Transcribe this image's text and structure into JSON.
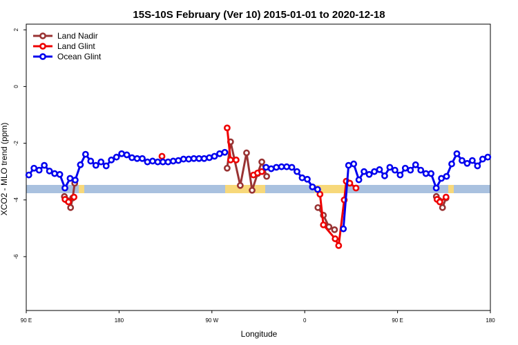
{
  "chart_data": {
    "type": "line",
    "title": "15S-10S February (Ver 10)   2015-01-01 to 2020-12-18",
    "x_label": "Longitude",
    "y_label": "XCO2 - MLO trend (ppm)",
    "xlim": [
      90,
      540
    ],
    "xticks": [
      {
        "value": 90,
        "label": "90 E"
      },
      180,
      {
        "value": 270,
        "label": "90 W"
      },
      {
        "value": 360,
        "label": "0"
      },
      {
        "value": 450,
        "label": "90 E"
      },
      {
        "value": 540,
        "label": "180"
      }
    ],
    "ylim": [
      -7.9,
      2.2
    ],
    "yticks": [
      2,
      0,
      -2,
      -4,
      -6
    ],
    "legend": "top-left",
    "series": [
      {
        "name": "Land Nadir",
        "color": "#993333",
        "x": [
          127.0,
          129.6,
          133.0,
          135.0,
          137.0,
          null,
          284.8,
          288.1,
          297.5,
          303.6,
          309.0,
          314.3,
          318.4,
          323.1,
          null,
          372.8,
          378.1,
          383.5,
          388.9,
          null,
          487.6,
          490.3,
          493.6,
          497.0
        ],
        "values": [
          -3.88,
          -4.02,
          -4.27,
          -3.93,
          -3.41,
          null,
          -2.88,
          -1.95,
          -3.49,
          -2.34,
          -3.66,
          -3.07,
          -2.66,
          -3.17,
          null,
          -4.27,
          -4.54,
          -4.95,
          -5.05,
          null,
          -3.88,
          -4.02,
          -4.27,
          -3.93
        ]
      },
      {
        "name": "Land Glint",
        "color": "#ee0000",
        "x": [
          127.6,
          131.0,
          136.3,
          null,
          221.6,
          null,
          284.8,
          288.1,
          293.5,
          null,
          310.3,
          314.3,
          318.4,
          null,
          374.8,
          378.1,
          389.5,
          392.9,
          398.3,
          400.3,
          403.7,
          409.7,
          null,
          488.3,
          491.0,
          497.0
        ],
        "values": [
          -3.98,
          -4.07,
          -3.9,
          null,
          -2.46,
          null,
          -1.46,
          -2.59,
          -2.59,
          null,
          -3.12,
          -3.05,
          -3.0,
          null,
          -3.8,
          -4.88,
          -5.37,
          -5.61,
          -4.0,
          -3.34,
          -3.41,
          -3.58,
          null,
          -3.98,
          -4.07,
          -3.9
        ]
      },
      {
        "name": "Ocean Glint",
        "color": "#0000ee",
        "x": [
          92.5,
          97.5,
          102.5,
          107.5,
          112.5,
          117.5,
          122.5,
          127.5,
          132.5,
          137.5,
          142.5,
          147.5,
          152.5,
          157.5,
          162.5,
          167.5,
          172.5,
          177.5,
          182.5,
          187.5,
          192.5,
          197.5,
          202.5,
          207.5,
          212.5,
          217.5,
          222.5,
          227.5,
          232.5,
          237.5,
          242.5,
          247.5,
          252.5,
          257.5,
          262.5,
          267.5,
          272.5,
          277.5,
          282.5,
          287.5,
          292.5,
          297.5,
          302.5,
          307.5,
          312.5,
          317.5,
          322.5,
          327.5,
          332.5,
          337.5,
          342.5,
          347.5,
          352.5,
          357.5,
          362.5,
          367.5,
          372.5,
          377.5,
          382.5,
          387.5,
          392.5,
          397.5,
          402.5,
          407.5,
          412.5,
          417.5,
          422.5,
          427.5,
          432.5,
          437.5,
          442.5,
          447.5,
          452.5,
          457.5,
          462.5,
          467.5,
          472.5,
          477.5,
          482.5,
          487.5,
          492.5,
          497.5,
          502.5,
          507.5,
          512.5,
          517.5,
          522.5,
          527.5,
          532.5,
          537.5
        ],
        "values": [
          -3.12,
          -2.88,
          -2.95,
          -2.78,
          -2.98,
          -3.07,
          -3.1,
          -3.58,
          -3.24,
          -3.3,
          -2.76,
          -2.39,
          -2.63,
          -2.78,
          -2.66,
          -2.8,
          -2.59,
          -2.49,
          -2.37,
          -2.41,
          -2.51,
          -2.54,
          -2.54,
          -2.66,
          -2.63,
          -2.66,
          -2.66,
          -2.66,
          -2.63,
          -2.61,
          -2.56,
          -2.56,
          -2.54,
          -2.54,
          -2.54,
          -2.51,
          -2.46,
          -2.37,
          -2.32,
          null,
          null,
          null,
          null,
          null,
          null,
          null,
          -2.85,
          -2.9,
          -2.85,
          -2.83,
          -2.83,
          -2.85,
          -3.0,
          -3.22,
          -3.27,
          -3.54,
          -3.63,
          null,
          null,
          null,
          null,
          -5.02,
          -2.78,
          -2.73,
          -3.29,
          -3.0,
          -3.1,
          -3.0,
          -2.93,
          -3.15,
          -2.85,
          -2.95,
          -3.12,
          -2.88,
          -2.95,
          -2.76,
          -2.95,
          -3.07,
          -3.07,
          -3.58,
          -3.24,
          -3.17,
          -2.73,
          -2.37,
          -2.61,
          -2.71,
          -2.61,
          -2.8,
          -2.56,
          -2.49
        ]
      }
    ]
  }
}
